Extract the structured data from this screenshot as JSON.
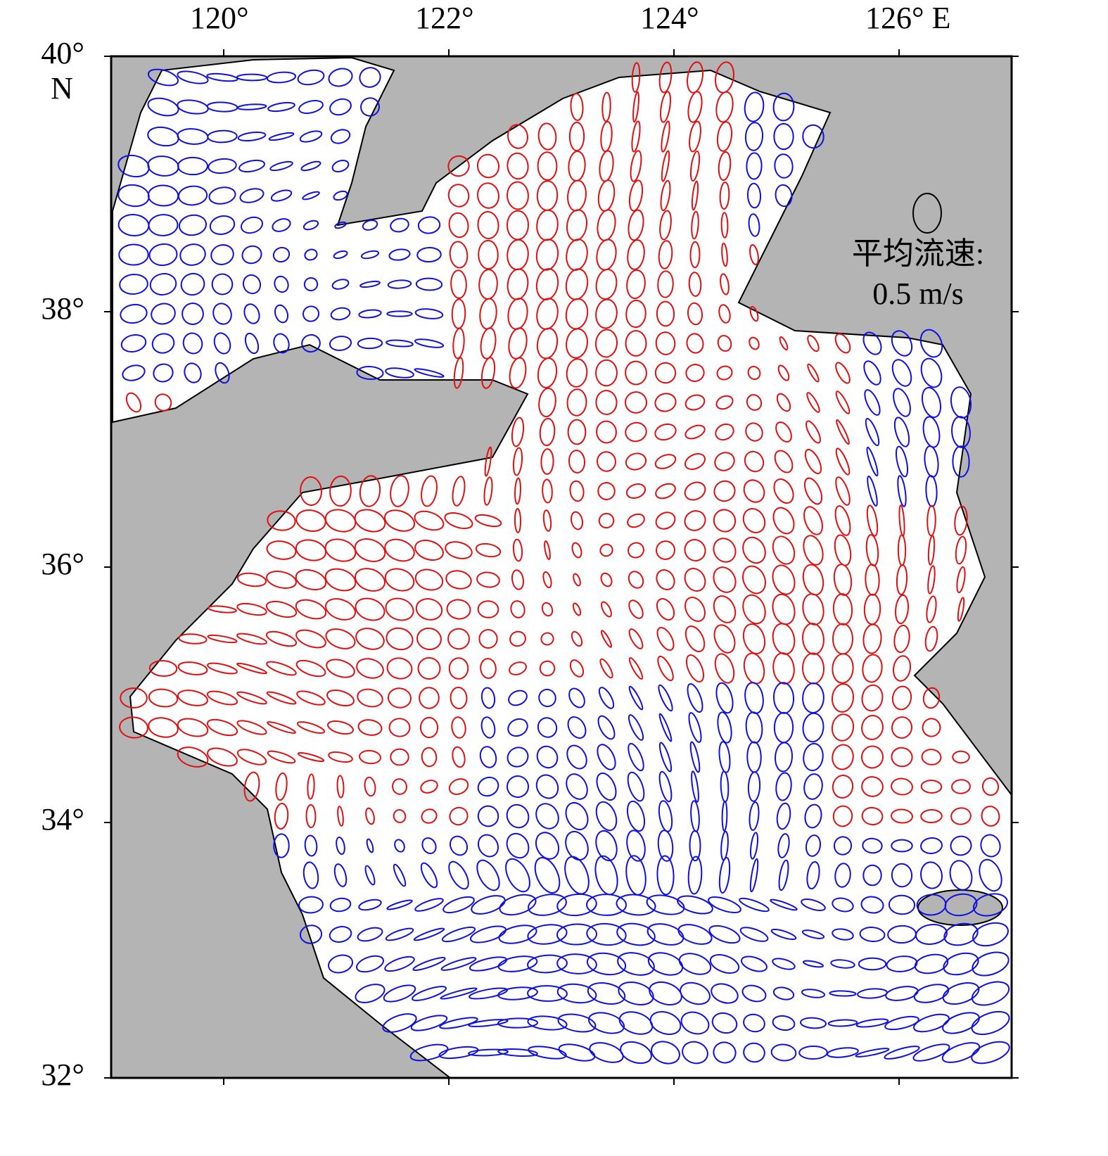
{
  "map": {
    "xlim": [
      119,
      127
    ],
    "ylim": [
      32,
      40
    ],
    "xticks": [
      {
        "value": 120,
        "label": "120°"
      },
      {
        "value": 122,
        "label": "122°"
      },
      {
        "value": 124,
        "label": "124°"
      },
      {
        "value": 126,
        "label": "126° E"
      }
    ],
    "yticks": [
      {
        "value": 32,
        "label": "32°"
      },
      {
        "value": 34,
        "label": "34°"
      },
      {
        "value": 36,
        "label": "36°"
      },
      {
        "value": 38,
        "label": "38°"
      },
      {
        "value": 40,
        "label": "40°"
      }
    ],
    "lat_hemisphere": "N",
    "legend": {
      "title": "平均流速:",
      "scale": "0.5 m/s"
    }
  }
}
